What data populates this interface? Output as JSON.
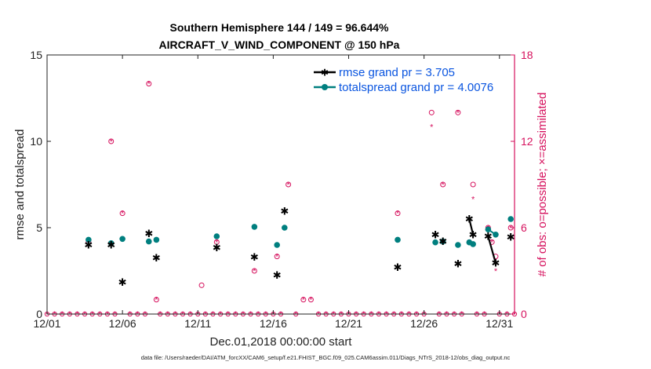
{
  "colors": {
    "rmse": "#000000",
    "spread": "#007f7f",
    "obs": "#d6125e",
    "legend_text": "#0a55e0",
    "axis": "#222222"
  },
  "footer": "data file: /Users/raeder/DAI/ATM_forcXX/CAM6_setup/f.e21.FHIST_BGC.f09_025.CAM6assim.011/Diags_NTrS_2018-12/obs_diag_output.nc",
  "chart_data": {
    "type": "scatter",
    "title_line1": "Southern Hemisphere 144 / 149 = 96.644%",
    "title_line2": "AIRCRAFT_V_WIND_COMPONENT @ 150 hPa",
    "xlabel": "Dec.01,2018 00:00:00 start",
    "ylabel": "rmse and totalspread",
    "y2label": "# of obs: o=possible; ×=assimilated",
    "xlim": [
      1,
      32
    ],
    "ylim": [
      0,
      15
    ],
    "y2lim": [
      0,
      18
    ],
    "x_ticks": [
      1,
      6,
      11,
      16,
      21,
      26,
      31
    ],
    "x_tick_labels": [
      "12/01",
      "12/06",
      "12/11",
      "12/16",
      "12/21",
      "12/26",
      "12/31"
    ],
    "y_ticks": [
      0,
      5,
      10,
      15
    ],
    "y_tick_labels": [
      "0",
      "5",
      "10",
      "15"
    ],
    "y2_ticks": [
      0,
      6,
      12,
      18
    ],
    "y2_tick_labels": [
      "0",
      "6",
      "12",
      "18"
    ],
    "legend": [
      {
        "key": "rmse",
        "label": "rmse grand pr = 3.705"
      },
      {
        "key": "spread",
        "label": "totalspread grand pr = 4.0076"
      }
    ],
    "series": [
      {
        "name": "rmse",
        "points": [
          [
            3.75,
            4.0
          ],
          [
            5.25,
            4.0
          ],
          [
            6.0,
            1.85
          ],
          [
            7.75,
            4.65
          ],
          [
            8.25,
            3.25
          ],
          [
            12.25,
            3.85
          ],
          [
            14.75,
            3.3
          ],
          [
            16.25,
            2.25
          ],
          [
            16.75,
            5.95
          ],
          [
            24.25,
            2.7
          ],
          [
            26.75,
            4.6
          ],
          [
            27.25,
            4.2
          ],
          [
            28.25,
            2.9
          ],
          [
            29.0,
            5.5
          ],
          [
            29.25,
            4.6
          ],
          [
            30.25,
            4.5
          ],
          [
            30.75,
            2.95
          ],
          [
            31.75,
            4.45
          ]
        ],
        "lines": [
          [
            [
              29.0,
              5.5
            ],
            [
              29.25,
              4.6
            ]
          ],
          [
            [
              30.25,
              4.5
            ],
            [
              30.75,
              2.95
            ]
          ]
        ]
      },
      {
        "name": "totalspread",
        "points": [
          [
            3.75,
            4.3
          ],
          [
            5.25,
            4.1
          ],
          [
            6.0,
            4.35
          ],
          [
            7.75,
            4.2
          ],
          [
            8.25,
            4.3
          ],
          [
            12.25,
            4.5
          ],
          [
            14.75,
            5.05
          ],
          [
            16.25,
            4.0
          ],
          [
            16.75,
            5.0
          ],
          [
            24.25,
            4.3
          ],
          [
            26.75,
            4.15
          ],
          [
            27.25,
            4.2
          ],
          [
            28.25,
            4.0
          ],
          [
            29.0,
            4.15
          ],
          [
            29.25,
            4.05
          ],
          [
            30.25,
            4.9
          ],
          [
            30.75,
            4.6
          ],
          [
            31.75,
            5.5
          ]
        ],
        "lines": [
          [
            [
              30.25,
              4.9
            ],
            [
              30.75,
              4.6
            ]
          ]
        ]
      },
      {
        "name": "obs_possible",
        "axis": "right",
        "points": [
          [
            3.75,
            5
          ],
          [
            5.25,
            12
          ],
          [
            6.0,
            7
          ],
          [
            7.75,
            16
          ],
          [
            8.25,
            1
          ],
          [
            11.25,
            2
          ],
          [
            12.25,
            5
          ],
          [
            14.75,
            3
          ],
          [
            16.25,
            4
          ],
          [
            17.0,
            9
          ],
          [
            18.0,
            1
          ],
          [
            18.5,
            1
          ],
          [
            24.25,
            7
          ],
          [
            26.5,
            14
          ],
          [
            27.25,
            9
          ],
          [
            28.25,
            14
          ],
          [
            29.0,
            5
          ],
          [
            29.25,
            9
          ],
          [
            30.25,
            6
          ],
          [
            30.5,
            5
          ],
          [
            30.75,
            4
          ],
          [
            31.75,
            6
          ]
        ]
      },
      {
        "name": "obs_assimilated",
        "axis": "right",
        "points": [
          [
            3.75,
            5
          ],
          [
            5.25,
            12
          ],
          [
            6.0,
            7
          ],
          [
            7.75,
            16
          ],
          [
            8.25,
            1
          ],
          [
            12.25,
            5
          ],
          [
            14.75,
            3
          ],
          [
            16.25,
            4
          ],
          [
            17.0,
            9
          ],
          [
            18.0,
            1
          ],
          [
            18.5,
            1
          ],
          [
            24.25,
            7
          ],
          [
            26.5,
            13
          ],
          [
            27.25,
            9
          ],
          [
            28.25,
            14
          ],
          [
            29.0,
            5
          ],
          [
            29.25,
            8
          ],
          [
            30.25,
            6
          ],
          [
            30.5,
            5
          ],
          [
            30.75,
            3
          ],
          [
            31.75,
            6
          ]
        ]
      }
    ],
    "zero_obs_x": [
      1.0,
      1.5,
      2.0,
      2.5,
      3.0,
      3.5,
      4.0,
      4.5,
      5.0,
      5.5,
      6.5,
      7.0,
      7.5,
      8.5,
      9.0,
      9.5,
      10.0,
      10.5,
      11.0,
      11.5,
      12.0,
      12.5,
      13.0,
      13.5,
      14.0,
      14.5,
      15.0,
      15.5,
      16.0,
      16.5,
      17.5,
      19.0,
      19.5,
      20.0,
      20.5,
      21.0,
      21.5,
      22.0,
      22.5,
      23.0,
      23.5,
      24.0,
      24.5,
      25.0,
      25.5,
      26.0,
      27.0,
      27.5,
      28.0,
      28.5,
      29.5,
      30.0,
      31.0,
      31.5,
      32.0
    ]
  }
}
